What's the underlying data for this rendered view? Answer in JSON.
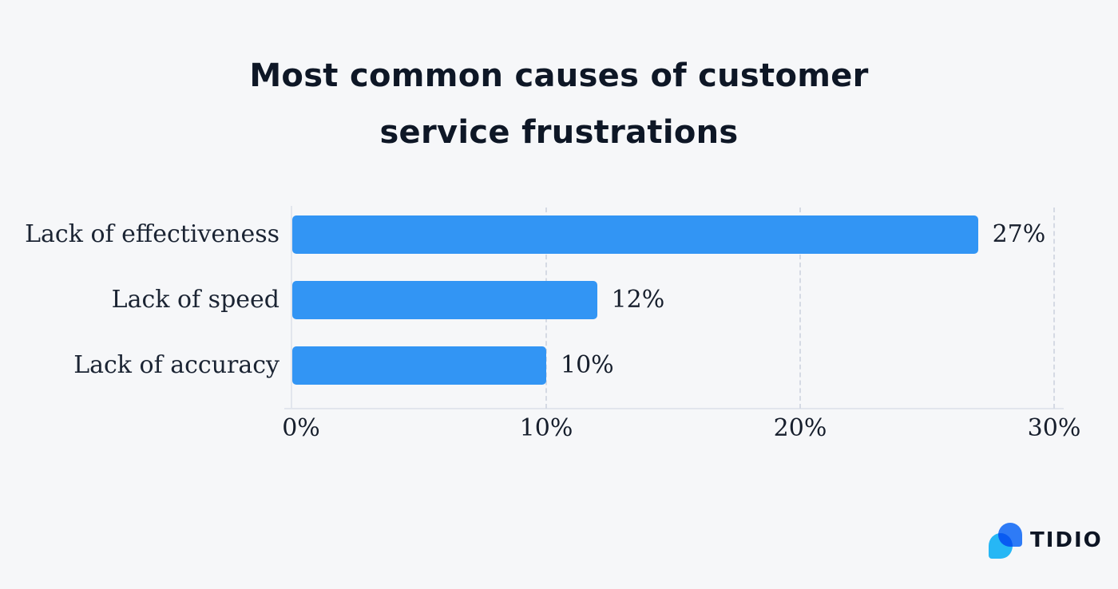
{
  "title": {
    "line1": "Most common causes of customer",
    "line2": "service frustrations"
  },
  "chart_data": {
    "type": "bar",
    "orientation": "horizontal",
    "title": "Most common causes of customer service frustrations",
    "categories": [
      "Lack of effectiveness",
      "Lack of speed",
      "Lack of accuracy"
    ],
    "values": [
      27,
      12,
      10
    ],
    "value_labels": [
      "27%",
      "12%",
      "10%"
    ],
    "xlabel": "",
    "ylabel": "",
    "xlim": [
      0,
      30
    ],
    "xticks": [
      0,
      10,
      20,
      30
    ],
    "xtick_labels": [
      "0%",
      "10%",
      "20%",
      "30%"
    ],
    "bar_color": "#3295F4",
    "grid": "vertical-dashed",
    "legend": "none"
  },
  "logo": {
    "text": "TIDIO",
    "mark_color_primary": "#2E7BF6",
    "mark_color_secondary": "#27BDFB"
  }
}
